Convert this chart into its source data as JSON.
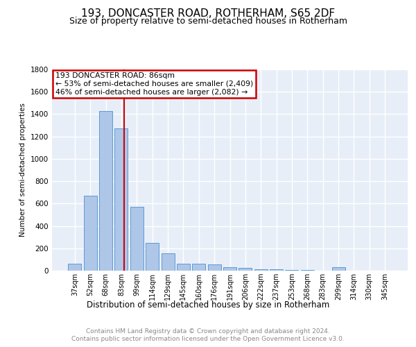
{
  "title1": "193, DONCASTER ROAD, ROTHERHAM, S65 2DF",
  "title2": "Size of property relative to semi-detached houses in Rotherham",
  "xlabel": "Distribution of semi-detached houses by size in Rotherham",
  "ylabel": "Number of semi-detached properties",
  "categories": [
    "37sqm",
    "52sqm",
    "68sqm",
    "83sqm",
    "99sqm",
    "114sqm",
    "129sqm",
    "145sqm",
    "160sqm",
    "176sqm",
    "191sqm",
    "206sqm",
    "222sqm",
    "237sqm",
    "253sqm",
    "268sqm",
    "283sqm",
    "299sqm",
    "314sqm",
    "330sqm",
    "345sqm"
  ],
  "values": [
    60,
    670,
    1430,
    1275,
    570,
    250,
    155,
    65,
    60,
    55,
    30,
    22,
    15,
    10,
    8,
    5,
    3,
    30,
    3,
    2,
    1
  ],
  "bar_color": "#aec6e8",
  "bar_edge_color": "#5b9bd5",
  "annotation_line1": "193 DONCASTER ROAD: 86sqm",
  "annotation_line2": "← 53% of semi-detached houses are smaller (2,409)",
  "annotation_line3": "46% of semi-detached houses are larger (2,082) →",
  "annotation_box_color": "#ffffff",
  "annotation_box_edge": "#cc0000",
  "footer": "Contains HM Land Registry data © Crown copyright and database right 2024.\nContains public sector information licensed under the Open Government Licence v3.0.",
  "ylim": [
    0,
    1800
  ],
  "background_color": "#e8eef8",
  "grid_color": "#ffffff",
  "title_fontsize": 11,
  "subtitle_fontsize": 9
}
